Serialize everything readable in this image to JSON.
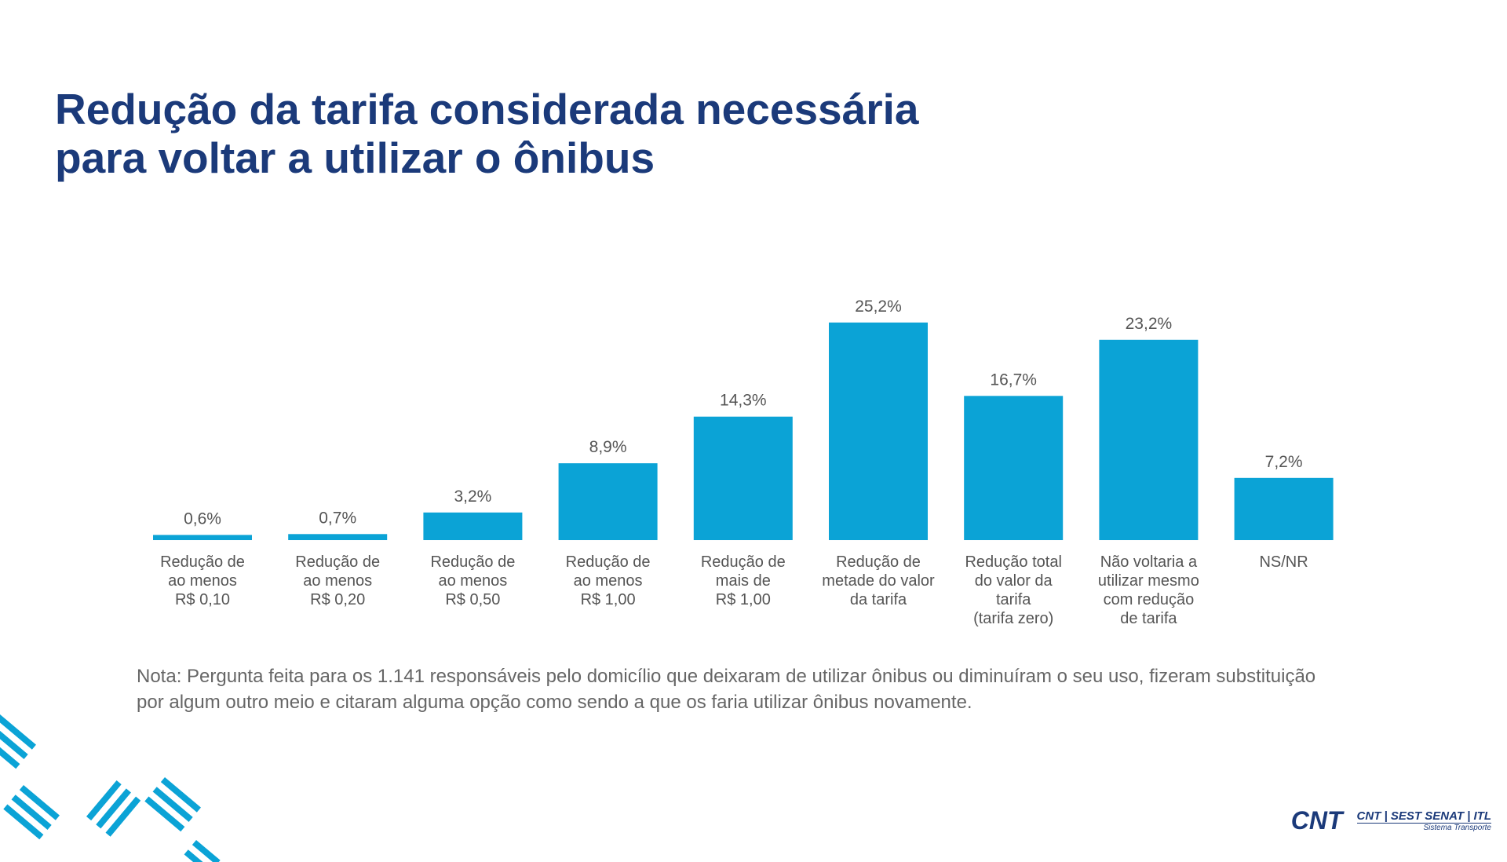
{
  "chart_data": {
    "type": "bar",
    "title": [
      "Redução da tarifa considerada necessária",
      "para voltar a utilizar o ônibus"
    ],
    "categories": [
      "Redução de\nao menos\nR$ 0,10",
      "Redução de\nao menos\nR$ 0,20",
      "Redução de\nao menos\nR$ 0,50",
      "Redução de\nao menos\nR$ 1,00",
      "Redução de\nmais de\nR$ 1,00",
      "Redução de\nmetade do valor\nda tarifa",
      "Redução total\ndo valor da\ntarifa\n(tarifa zero)",
      "Não voltaria a\nutilizar mesmo\ncom redução\nde tarifa",
      "NS/NR"
    ],
    "values": [
      0.6,
      0.7,
      3.2,
      8.9,
      14.3,
      25.2,
      16.7,
      23.2,
      7.2
    ],
    "value_labels": [
      "0,6%",
      "0,7%",
      "3,2%",
      "8,9%",
      "14,3%",
      "25,2%",
      "16,7%",
      "23,2%",
      "7,2%"
    ],
    "color": "#0ba3d6",
    "note": "Nota: Pergunta feita para os 1.141  responsáveis pelo domicílio que deixaram de utilizar ônibus ou diminuíram o seu uso, fizeram substituição por algum outro meio e citaram alguma opção como sendo a que os faria utilizar ônibus novamente."
  },
  "logo": {
    "mark": "CNT",
    "name": "CNT | SEST SENAT | ITL",
    "tagline": "Sistema Transporte"
  }
}
